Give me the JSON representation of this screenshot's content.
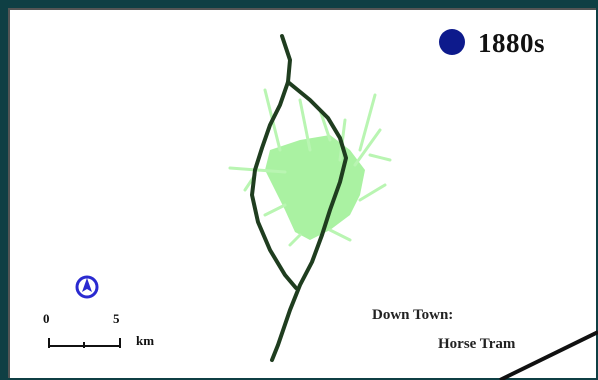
{
  "legend": {
    "label": "1880s",
    "dot_color": "#0d1a8c"
  },
  "scale_bar": {
    "start": "0",
    "end": "5",
    "unit": "km"
  },
  "annotation": {
    "line1": "Down Town:",
    "line2": "Horse Tram"
  },
  "colors": {
    "rail_line": "#1f3d1f",
    "urban_area": "#a9f0a0",
    "north_arrow": "#2a2ad0",
    "background": "#0f3f44"
  },
  "icons": {
    "north_arrow": "north-arrow-icon"
  }
}
